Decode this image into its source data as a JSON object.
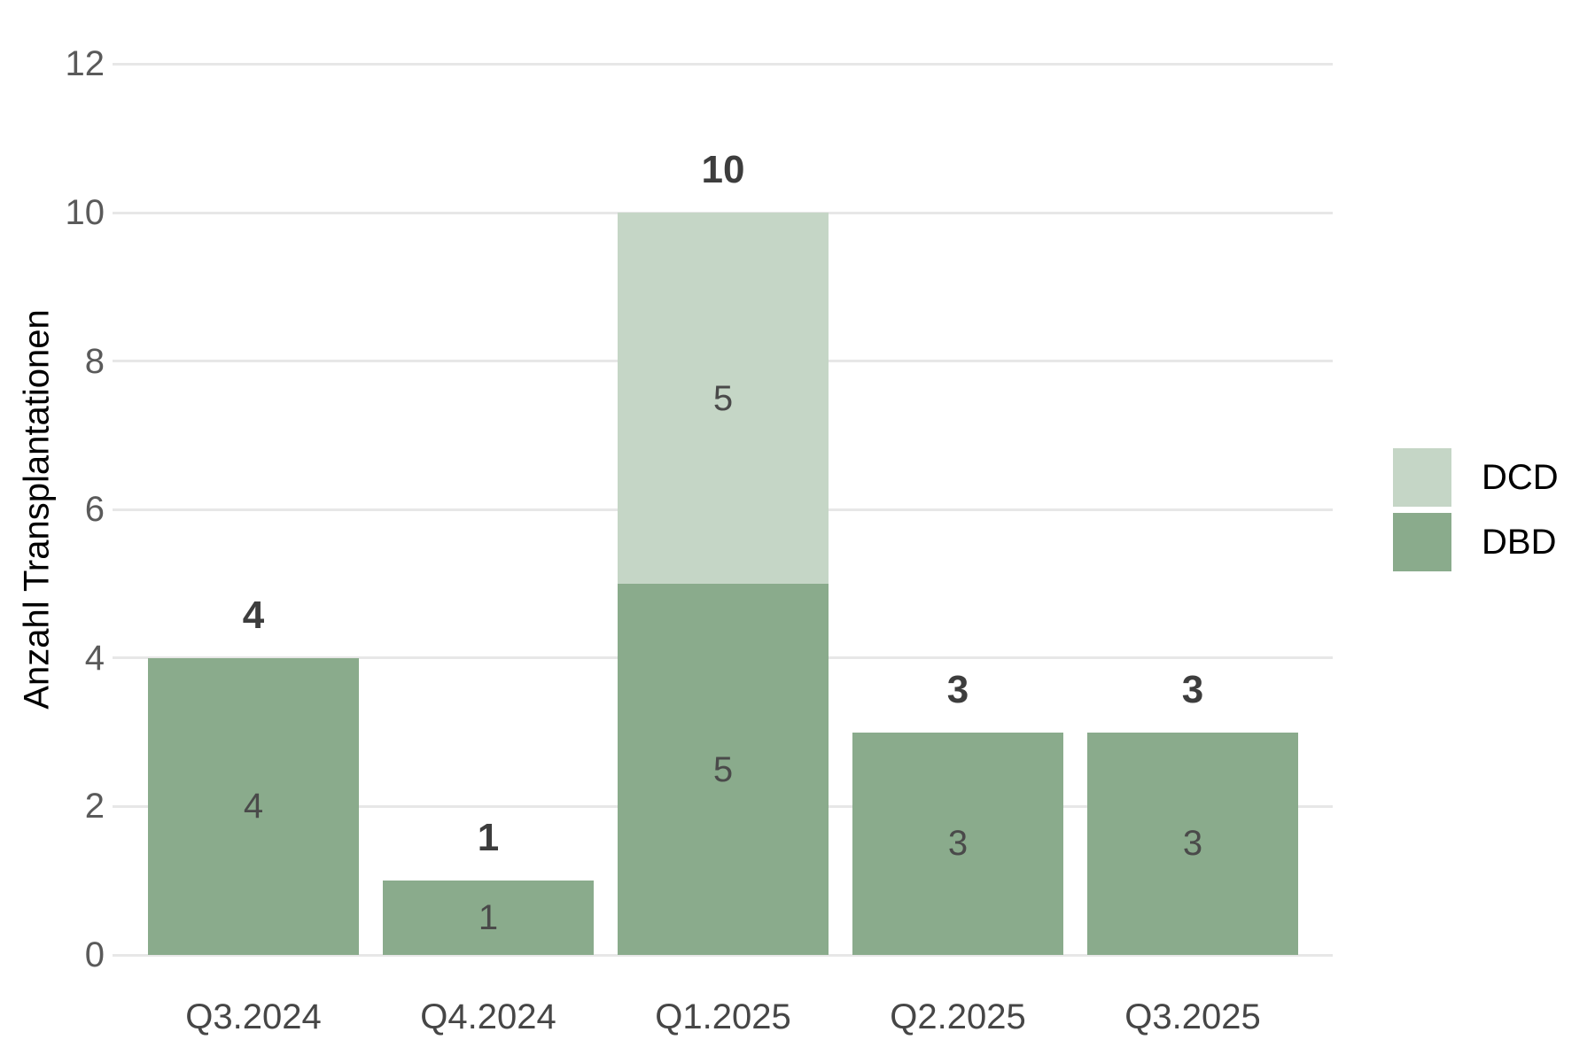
{
  "chart_data": {
    "type": "bar",
    "stacked": true,
    "title": "",
    "xlabel": "",
    "ylabel": "Anzahl Transplantationen",
    "categories": [
      "Q3.2024",
      "Q4.2024",
      "Q1.2025",
      "Q2.2025",
      "Q3.2025"
    ],
    "series": [
      {
        "name": "DBD",
        "color": "#8aab8c",
        "values": [
          4,
          1,
          5,
          3,
          3
        ]
      },
      {
        "name": "DCD",
        "color": "#c5d6c6",
        "values": [
          0,
          0,
          5,
          0,
          0
        ]
      }
    ],
    "totals": [
      4,
      1,
      10,
      3,
      3
    ],
    "y_ticks": [
      0,
      2,
      4,
      6,
      8,
      10,
      12
    ],
    "ylim": [
      0,
      12
    ],
    "grid": "horizontal-major",
    "legend_position": "right-middle"
  },
  "legend": {
    "items": [
      {
        "label": "DCD",
        "color": "#c5d6c6"
      },
      {
        "label": "DBD",
        "color": "#8aab8c"
      }
    ]
  },
  "colors": {
    "gridline": "#e7e7e7",
    "y_tick_text": "#5a5a5a",
    "x_tick_text": "#464646",
    "total_label_text": "#3d3d3d",
    "segment_label_text": "#4a4a4a",
    "axis_title_text": "#000000",
    "legend_text": "#000000"
  }
}
